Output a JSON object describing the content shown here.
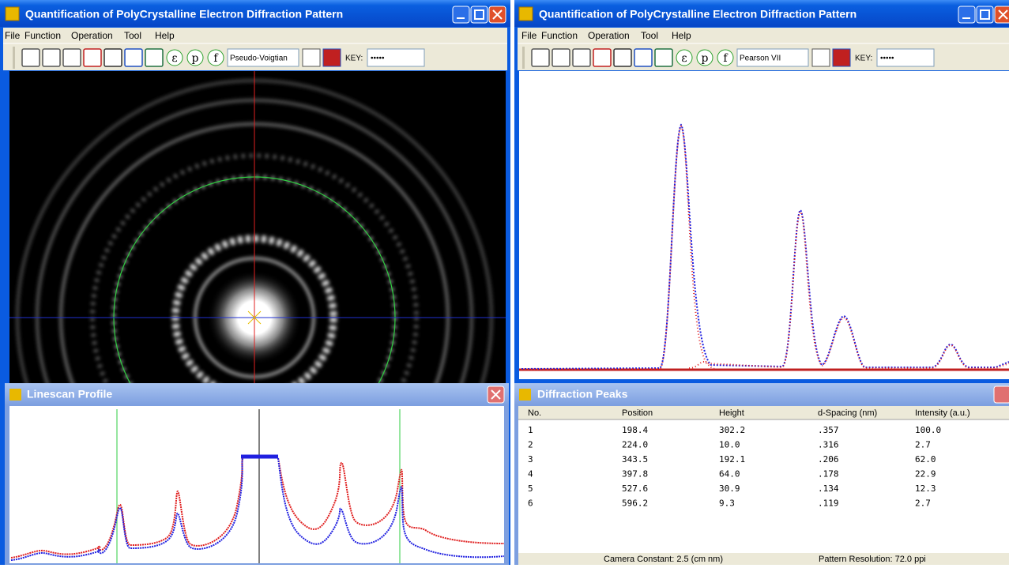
{
  "left_window": {
    "title": "Quantification of PolyCrystalline Electron Diffraction Pattern",
    "menu": [
      "File",
      "Function",
      "Operation",
      "Tool",
      "Help"
    ],
    "toolbar": {
      "symbols": [
        "ε",
        "p",
        "f"
      ],
      "fit_function": "Pseudo-Voigtian",
      "key_label": "KEY:",
      "key_value": "•••••"
    }
  },
  "linescan": {
    "title": "Linescan Profile"
  },
  "right_window": {
    "title": "Quantification of PolyCrystalline Electron Diffraction Pattern",
    "menu": [
      "File",
      "Function",
      "Operation",
      "Tool",
      "Help"
    ],
    "toolbar": {
      "symbols": [
        "ε",
        "p",
        "f"
      ],
      "fit_function": "Pearson VII",
      "key_label": "KEY:",
      "key_value": "•••••"
    }
  },
  "peaks": {
    "title": "Diffraction Peaks",
    "columns": [
      "No.",
      "Position",
      "Height",
      "d-Spacing (nm)",
      "Intensity (a.u.)"
    ],
    "rows": [
      [
        "1",
        "198.4",
        "302.2",
        ".357",
        "100.0"
      ],
      [
        "2",
        "224.0",
        "10.0",
        ".316",
        "2.7"
      ],
      [
        "3",
        "343.5",
        "192.1",
        ".206",
        "62.0"
      ],
      [
        "4",
        "397.8",
        "64.0",
        ".178",
        "22.9"
      ],
      [
        "5",
        "527.6",
        "30.9",
        ".134",
        "12.3"
      ],
      [
        "6",
        "596.2",
        "9.3",
        ".119",
        "2.7"
      ]
    ],
    "status": [
      "Camera Constant: 2.5 (cm nm)",
      "Pattern Resolution: 72.0 ppi"
    ]
  }
}
